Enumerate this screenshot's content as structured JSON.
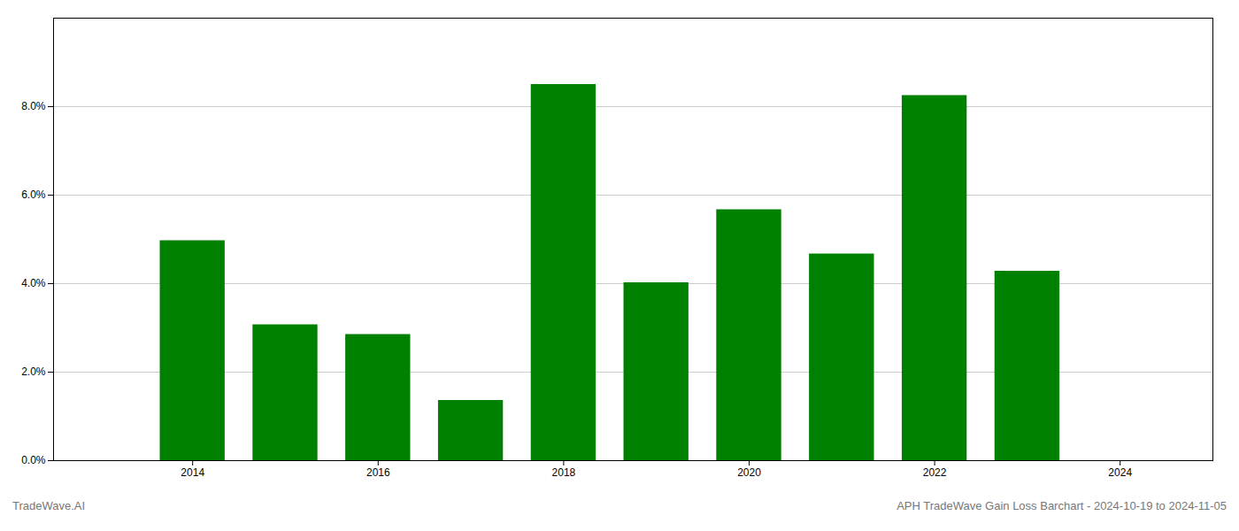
{
  "chart_data": {
    "type": "bar",
    "title": "APH TradeWave Gain Loss Barchart - 2024-10-19 to 2024-11-05",
    "annotations": [
      "TradeWave.AI"
    ],
    "x": [
      2014,
      2015,
      2016,
      2017,
      2018,
      2019,
      2020,
      2021,
      2022,
      2023
    ],
    "values": [
      0.0497,
      0.0307,
      0.0285,
      0.0136,
      0.085,
      0.0402,
      0.0567,
      0.0467,
      0.0825,
      0.0428
    ],
    "color": "#008000",
    "xlim": [
      2012.5,
      2025.0
    ],
    "xticks": [
      2014,
      2016,
      2018,
      2020,
      2022,
      2024
    ],
    "ylim": [
      0,
      0.1
    ],
    "yticks": [
      {
        "value": 0.0,
        "label": "0.0%"
      },
      {
        "value": 0.02,
        "label": "2.0%"
      },
      {
        "value": 0.04,
        "label": "4.0%"
      },
      {
        "value": 0.06,
        "label": "6.0%"
      },
      {
        "value": 0.08,
        "label": "8.0%"
      }
    ],
    "grid": true
  }
}
